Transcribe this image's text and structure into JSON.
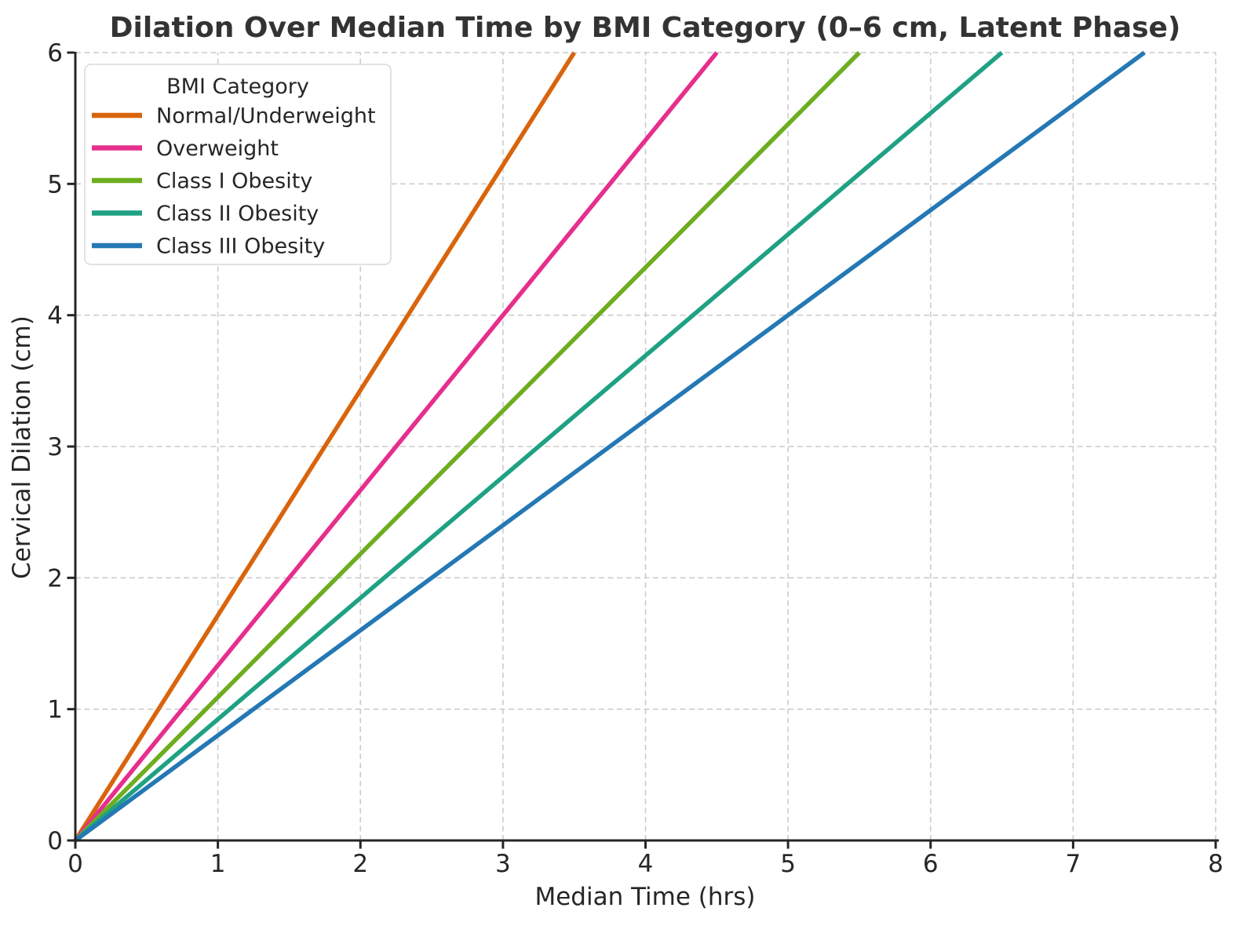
{
  "chart_data": {
    "type": "line",
    "title": "Dilation Over Median Time by BMI Category (0–6 cm, Latent Phase)",
    "xlabel": "Median Time (hrs)",
    "ylabel": "Cervical Dilation (cm)",
    "xlim": [
      0,
      8
    ],
    "ylim": [
      0,
      6
    ],
    "xticks": [
      0,
      1,
      2,
      3,
      4,
      5,
      6,
      7,
      8
    ],
    "yticks": [
      0,
      1,
      2,
      3,
      4,
      5,
      6
    ],
    "grid": true,
    "grid_style": "dashed",
    "legend": {
      "title": "BMI Category",
      "position": "upper left"
    },
    "series": [
      {
        "name": "Normal/Underweight",
        "color": "#d9640d",
        "x": [
          0,
          3.5
        ],
        "y": [
          0,
          6
        ]
      },
      {
        "name": "Overweight",
        "color": "#e62e8d",
        "x": [
          0,
          4.5
        ],
        "y": [
          0,
          6
        ]
      },
      {
        "name": "Class I Obesity",
        "color": "#6dad1f",
        "x": [
          0,
          5.5
        ],
        "y": [
          0,
          6
        ]
      },
      {
        "name": "Class II Obesity",
        "color": "#1fa183",
        "x": [
          0,
          6.5
        ],
        "y": [
          0,
          6
        ]
      },
      {
        "name": "Class III Obesity",
        "color": "#2478b4",
        "x": [
          0,
          7.5
        ],
        "y": [
          0,
          6
        ]
      }
    ]
  },
  "style_colors": {
    "grid": "#cccccc",
    "spine": "#262626",
    "text": "#262626",
    "title": "#333333",
    "legend_border": "#d8d8d8",
    "legend_bg": "#ffffff",
    "background": "#ffffff"
  }
}
